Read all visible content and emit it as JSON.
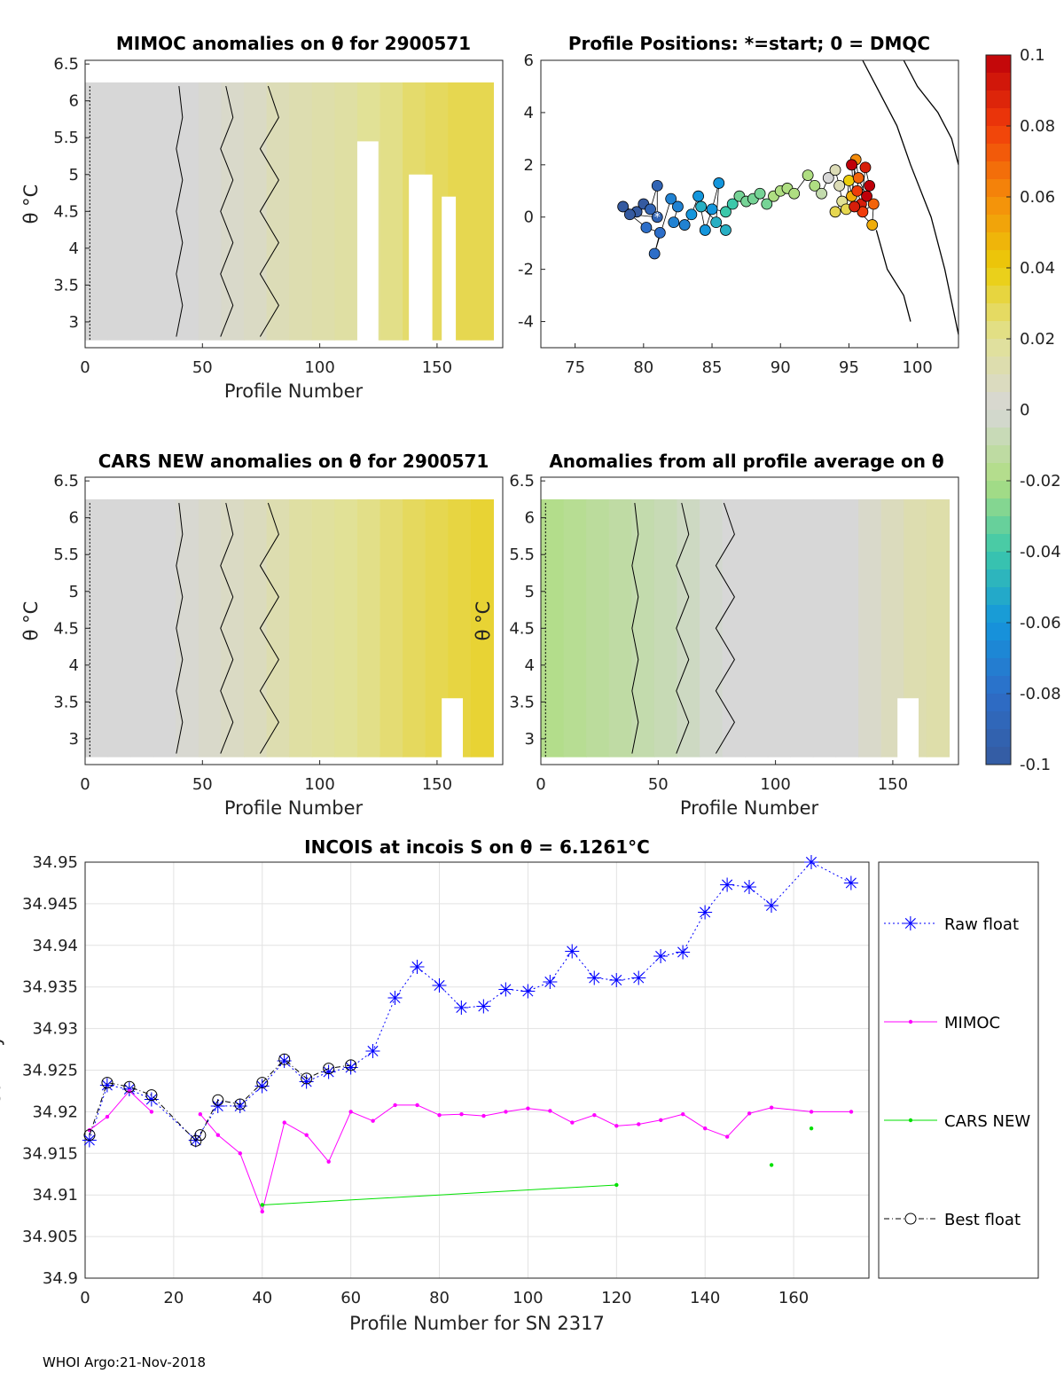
{
  "footer": "WHOI Argo:21-Nov-2018",
  "panels": {
    "mimoc": {
      "title": "MIMOC anomalies on θ  for 2900571",
      "xlabel": "Profile Number",
      "ylabel": "θ °C"
    },
    "positions": {
      "title": "Profile Positions: *=start; 0 = DMQC"
    },
    "cars": {
      "title": "CARS NEW anomalies on θ for 2900571",
      "xlabel": "Profile Number",
      "ylabel": "θ °C"
    },
    "avg": {
      "title": "Anomalies from all profile average on θ",
      "xlabel": "Profile Number",
      "ylabel": "θ °C"
    }
  },
  "colorbar": {
    "ticks": [
      "0.1",
      "0.08",
      "0.06",
      "0.04",
      "0.02",
      "0",
      "-0.02",
      "-0.04",
      "-0.06",
      "-0.08",
      "-0.1"
    ],
    "range": [
      -0.1,
      0.1
    ]
  },
  "chart_data": [
    {
      "type": "heatmap",
      "id": "mimoc",
      "title": "MIMOC anomalies on θ  for 2900571",
      "xlabel": "Profile Number",
      "ylabel": "θ °C",
      "xlim": [
        0,
        178
      ],
      "ylim": [
        2.65,
        6.55
      ],
      "xticks": [
        0,
        50,
        100,
        150
      ],
      "yticks": [
        6.5,
        6,
        5.5,
        5,
        4.5,
        4,
        3.5,
        3
      ],
      "column_values": [
        0,
        0,
        0,
        0,
        0,
        0.002,
        0.004,
        0.006,
        0.01,
        0.012,
        0.014,
        0.016,
        0.02,
        0.022,
        0.026,
        0.028,
        0.03,
        0.03
      ],
      "gaps": [
        [
          116,
          125,
          2.75,
          5.45
        ],
        [
          138,
          148,
          2.75,
          5.0
        ],
        [
          152,
          158,
          2.75,
          4.7
        ]
      ]
    },
    {
      "type": "scatter",
      "id": "positions",
      "title": "Profile Positions: *=start; 0 = DMQC",
      "xlim": [
        72.5,
        103
      ],
      "ylim": [
        -5,
        6
      ],
      "xticks": [
        75,
        80,
        85,
        90,
        95,
        100
      ],
      "yticks": [
        6,
        4,
        2,
        0,
        -2,
        -4
      ],
      "points": [
        [
          78.5,
          0.4,
          -0.1
        ],
        [
          79.5,
          0.2,
          -0.1
        ],
        [
          80,
          0.5,
          -0.1
        ],
        [
          80.5,
          0.3,
          -0.09
        ],
        [
          81,
          1.2,
          -0.09
        ],
        [
          81,
          0,
          -0.09
        ],
        [
          79,
          0.1,
          -0.1
        ],
        [
          80.2,
          -0.4,
          -0.08
        ],
        [
          81.2,
          -0.6,
          -0.08
        ],
        [
          80.8,
          -1.4,
          -0.08
        ],
        [
          82,
          0.7,
          -0.07
        ],
        [
          82.5,
          0.4,
          -0.07
        ],
        [
          82.2,
          -0.2,
          -0.07
        ],
        [
          83,
          -0.3,
          -0.07
        ],
        [
          83.5,
          0.1,
          -0.06
        ],
        [
          84,
          0.8,
          -0.06
        ],
        [
          84.5,
          -0.5,
          -0.06
        ],
        [
          85,
          0.3,
          -0.06
        ],
        [
          85.5,
          1.3,
          -0.06
        ],
        [
          85.3,
          -0.2,
          -0.05
        ],
        [
          86,
          -0.5,
          -0.05
        ],
        [
          84.2,
          0.4,
          -0.05
        ],
        [
          86,
          0.2,
          -0.04
        ],
        [
          86.5,
          0.5,
          -0.04
        ],
        [
          87,
          0.8,
          -0.03
        ],
        [
          87.5,
          0.6,
          -0.03
        ],
        [
          88,
          0.7,
          -0.03
        ],
        [
          88.5,
          0.9,
          -0.03
        ],
        [
          89,
          0.5,
          -0.03
        ],
        [
          89.5,
          0.8,
          -0.02
        ],
        [
          90,
          1,
          -0.02
        ],
        [
          90.5,
          1.1,
          -0.02
        ],
        [
          91,
          0.9,
          -0.02
        ],
        [
          92,
          1.6,
          -0.02
        ],
        [
          92.5,
          1.2,
          -0.02
        ],
        [
          93,
          0.9,
          -0.01
        ],
        [
          93.5,
          1.5,
          0
        ],
        [
          94,
          1.8,
          0.01
        ],
        [
          94.3,
          1.2,
          0.01
        ],
        [
          94.5,
          0.6,
          0.02
        ],
        [
          94,
          0.2,
          0.03
        ],
        [
          94.8,
          0.3,
          0.03
        ],
        [
          95,
          1.4,
          0.04
        ],
        [
          95.2,
          0.8,
          0.05
        ],
        [
          95.5,
          2.2,
          0.06
        ],
        [
          95.7,
          1.5,
          0.07
        ],
        [
          95.6,
          1.0,
          0.08
        ],
        [
          95.9,
          0.5,
          0.09
        ],
        [
          96.2,
          1.9,
          0.09
        ],
        [
          96.5,
          1.2,
          0.1
        ],
        [
          96,
          0.2,
          0.08
        ],
        [
          96.8,
          0.5,
          0.07
        ],
        [
          96.7,
          -0.3,
          0.05
        ],
        [
          95.4,
          0.4,
          0.09
        ],
        [
          95.2,
          2.0,
          0.1
        ],
        [
          96.3,
          0.8,
          0.1
        ]
      ]
    },
    {
      "type": "heatmap",
      "id": "cars",
      "title": "CARS NEW anomalies on θ for 2900571",
      "xlabel": "Profile Number",
      "ylabel": "θ °C",
      "xlim": [
        0,
        178
      ],
      "ylim": [
        2.65,
        6.55
      ],
      "xticks": [
        0,
        50,
        100,
        150
      ],
      "yticks": [
        6.5,
        6,
        5.5,
        5,
        4.5,
        4,
        3.5,
        3
      ],
      "column_values": [
        0,
        0,
        0,
        0,
        0.002,
        0.004,
        0.006,
        0.008,
        0.012,
        0.016,
        0.018,
        0.02,
        0.022,
        0.025,
        0.028,
        0.03,
        0.032,
        0.034
      ],
      "gaps": [
        [
          152,
          161,
          2.75,
          3.55
        ]
      ]
    },
    {
      "type": "heatmap",
      "id": "avg",
      "title": "Anomalies from all profile average on θ",
      "xlabel": "Profile Number",
      "ylabel": "θ °C",
      "xlim": [
        0,
        178
      ],
      "ylim": [
        2.65,
        6.55
      ],
      "xticks": [
        0,
        50,
        100,
        150
      ],
      "yticks": [
        6.5,
        6,
        5.5,
        5,
        4.5,
        4,
        3.5,
        3
      ],
      "column_values": [
        -0.018,
        -0.016,
        -0.014,
        -0.012,
        -0.01,
        -0.008,
        -0.005,
        -0.002,
        0,
        0,
        0,
        0,
        0,
        0,
        0.004,
        0.008,
        0.012,
        0.014
      ],
      "gaps": [
        [
          152,
          161,
          2.75,
          3.55
        ]
      ]
    },
    {
      "type": "line",
      "id": "incois",
      "title": "INCOIS at incois S on θ = 6.1261°C",
      "xlabel": "Profile Number for SN 2317",
      "ylabel": "Salinity",
      "xlim": [
        0,
        177
      ],
      "ylim": [
        34.9,
        34.95
      ],
      "xticks": [
        0,
        20,
        40,
        60,
        80,
        100,
        120,
        140,
        160
      ],
      "yticks": [
        "34.95",
        "34.945",
        "34.94",
        "34.935",
        "34.93",
        "34.925",
        "34.92",
        "34.915",
        "34.91",
        "34.905",
        "34.9"
      ],
      "series": [
        {
          "name": "Raw float",
          "color": "#0000ff",
          "marker": "star",
          "style": "dotted",
          "x": [
            1,
            5,
            10,
            15,
            25,
            30,
            35,
            40,
            45,
            50,
            55,
            60,
            65,
            70,
            75,
            80,
            85,
            90,
            95,
            100,
            105,
            110,
            115,
            120,
            125,
            130,
            135,
            140,
            145,
            150,
            155,
            164,
            173
          ],
          "y": [
            34.9166,
            34.9232,
            34.9227,
            34.9215,
            34.9166,
            34.9207,
            34.9207,
            34.9231,
            34.9261,
            34.9236,
            34.9248,
            34.9253,
            34.9273,
            34.9337,
            34.9374,
            34.9352,
            34.9325,
            34.9327,
            34.9347,
            34.9345,
            34.9356,
            34.9393,
            34.9361,
            34.9358,
            34.9361,
            34.9387,
            34.9392,
            34.944,
            34.9473,
            34.947,
            34.9448,
            34.95,
            34.9475
          ]
        },
        {
          "name": "MIMOC",
          "color": "#ff00ff",
          "marker": "dot",
          "style": "solid",
          "x": [
            1,
            5,
            10,
            15,
            25,
            26,
            30,
            35,
            40,
            45,
            50,
            55,
            60,
            65,
            70,
            75,
            80,
            85,
            90,
            95,
            100,
            105,
            110,
            115,
            120,
            125,
            130,
            135,
            140,
            145,
            150,
            155,
            164,
            173
          ],
          "y": [
            34.9178,
            34.9194,
            34.9225,
            34.92,
            null,
            34.9197,
            34.9172,
            34.915,
            34.908,
            34.9187,
            34.9172,
            34.914,
            34.92,
            34.9189,
            34.9208,
            34.9208,
            34.9196,
            34.9197,
            34.9195,
            34.92,
            34.9204,
            34.9201,
            34.9187,
            34.9196,
            34.9183,
            34.9185,
            34.919,
            34.9197,
            34.918,
            34.917,
            34.9198,
            34.9205,
            34.92,
            34.92
          ]
        },
        {
          "name": "CARS NEW",
          "color": "#00e000",
          "marker": "dot",
          "style": "solid",
          "x": [
            40,
            120,
            155,
            164
          ],
          "y": [
            34.9088,
            34.9112,
            34.9136,
            34.918
          ],
          "breaks": [
            1,
            2
          ]
        },
        {
          "name": "Best float",
          "color": "#000000",
          "marker": "circle",
          "style": "dashdot",
          "x": [
            1,
            5,
            10,
            15,
            25,
            26,
            30,
            35,
            40,
            45,
            50,
            55,
            60
          ],
          "y": [
            34.9172,
            34.9235,
            34.923,
            34.922,
            34.9165,
            34.9172,
            34.9214,
            34.9209,
            34.9235,
            34.9263,
            34.924,
            34.9252,
            34.9256
          ]
        }
      ]
    }
  ]
}
